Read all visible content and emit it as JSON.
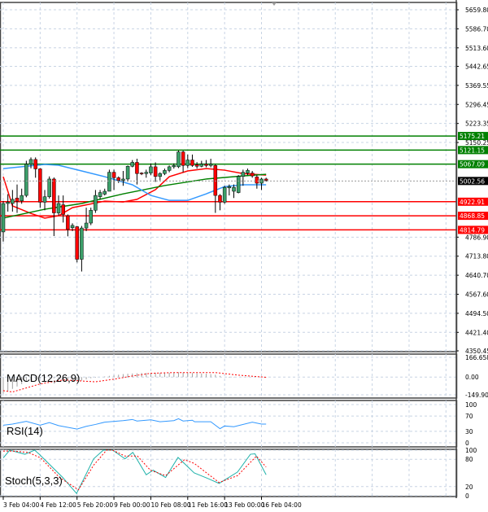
{
  "chart_data": {
    "type": "candlestick",
    "instrument_chart": "price with moving averages and indicators",
    "price_axis": {
      "ticks": [
        "5659.80",
        "5586.70",
        "5513.60",
        "5442.65",
        "5369.55",
        "5296.45",
        "5223.35",
        "5150.25",
        "4786.90",
        "4713.80",
        "4640.70",
        "4567.60",
        "4494.50",
        "4421.40",
        "4350.45"
      ],
      "range": [
        4350.45,
        5659.8
      ]
    },
    "time_axis": {
      "labels": [
        "3 Feb 04:00",
        "4 Feb 12:00",
        "5 Feb 20:00",
        "9 Feb 00:00",
        "10 Feb 08:00",
        "11 Feb 16:00",
        "13 Feb 00:00",
        "16 Feb 04:00"
      ],
      "bars_per_label": 8
    },
    "grid": true,
    "current_price": {
      "value": "5002.56",
      "color": "#000000"
    },
    "levels": [
      {
        "value": "5175.21",
        "color": "#008000"
      },
      {
        "value": "5121.15",
        "color": "#008000"
      },
      {
        "value": "5067.09",
        "color": "#008000"
      },
      {
        "value": "4922.91",
        "color": "#ff0000"
      },
      {
        "value": "4868.85",
        "color": "#ff0000"
      },
      {
        "value": "4814.79",
        "color": "#ff0000"
      }
    ],
    "colors": {
      "bull": "#3c9f6a",
      "bear": "#ff0000",
      "wick": "#000000"
    },
    "candles": [
      [
        4807,
        4926,
        4770,
        4916
      ],
      [
        4916,
        4952,
        4885,
        4921
      ],
      [
        4916,
        4968,
        4885,
        4932
      ],
      [
        4937,
        4989,
        4880,
        4924
      ],
      [
        4926,
        4973,
        4915,
        4947
      ],
      [
        4947,
        5080,
        4940,
        5067
      ],
      [
        5067,
        5093,
        5051,
        5085
      ],
      [
        5085,
        5093,
        5015,
        5049
      ],
      [
        5049,
        5052,
        4900,
        4921
      ],
      [
        4921,
        4968,
        4890,
        4942
      ],
      [
        4942,
        5020,
        4935,
        5010
      ],
      [
        5010,
        5016,
        4791,
        4880
      ],
      [
        4880,
        4947,
        4870,
        4916
      ],
      [
        4911,
        4947,
        4843,
        4874
      ],
      [
        4869,
        4874,
        4790,
        4817
      ],
      [
        4823,
        4840,
        4810,
        4832
      ],
      [
        4827,
        4830,
        4690,
        4702
      ],
      [
        4702,
        4830,
        4655,
        4822
      ],
      [
        4822,
        4900,
        4810,
        4841
      ],
      [
        4841,
        4900,
        4833,
        4890
      ],
      [
        4890,
        4968,
        4880,
        4947
      ],
      [
        4942,
        4968,
        4932,
        4958
      ],
      [
        4952,
        4973,
        4947,
        4963
      ],
      [
        4963,
        5046,
        4963,
        5036
      ],
      [
        5036,
        5046,
        4968,
        5015
      ],
      [
        5015,
        5020,
        4995,
        5005
      ],
      [
        5005,
        5041,
        4984,
        5010
      ],
      [
        5010,
        5062,
        5000,
        5059
      ],
      [
        5059,
        5083,
        5055,
        5074
      ],
      [
        5074,
        5088,
        4989,
        5031
      ],
      [
        5033,
        5036,
        5025,
        5031
      ],
      [
        5031,
        5046,
        5015,
        5036
      ],
      [
        5033,
        5070,
        5025,
        5057
      ],
      [
        5057,
        5074,
        4999,
        5020
      ],
      [
        5020,
        5036,
        5005,
        5031
      ],
      [
        5031,
        5050,
        5025,
        5043
      ],
      [
        5043,
        5062,
        5036,
        5057
      ],
      [
        5057,
        5070,
        5050,
        5062
      ],
      [
        5057,
        5119,
        5052,
        5114
      ],
      [
        5114,
        5119,
        5036,
        5062
      ],
      [
        5062,
        5104,
        5052,
        5083
      ],
      [
        5083,
        5104,
        5057,
        5062
      ],
      [
        5065,
        5075,
        5050,
        5059
      ],
      [
        5059,
        5080,
        5055,
        5067
      ],
      [
        5067,
        5083,
        5055,
        5062
      ],
      [
        5062,
        5088,
        5055,
        5067
      ],
      [
        5062,
        5067,
        4880,
        4947
      ],
      [
        4947,
        4952,
        4890,
        4921
      ],
      [
        4921,
        4984,
        4915,
        4978
      ],
      [
        4976,
        4989,
        4947,
        4981
      ],
      [
        4963,
        4989,
        4937,
        4978
      ],
      [
        4958,
        5025,
        4955,
        5020
      ],
      [
        5020,
        5046,
        4984,
        5036
      ],
      [
        5033,
        5050,
        5025,
        5043
      ],
      [
        5033,
        5041,
        5015,
        5022
      ],
      [
        5018,
        5025,
        4973,
        4994
      ],
      [
        4994,
        5015,
        4968,
        5010
      ],
      [
        5010,
        5015,
        5000,
        5005
      ]
    ],
    "moving_averages": [
      {
        "color": "#ff0000",
        "points": [
          [
            0,
            5019
          ],
          [
            2,
            4907
          ],
          [
            6,
            4878
          ],
          [
            9,
            4860
          ],
          [
            12,
            4869
          ],
          [
            15,
            4900
          ],
          [
            22,
            4925
          ],
          [
            26,
            4922
          ],
          [
            29,
            4932
          ],
          [
            33,
            4969
          ],
          [
            36,
            5019
          ],
          [
            40,
            5041
          ],
          [
            44,
            5050
          ],
          [
            48,
            5044
          ],
          [
            52,
            5031
          ],
          [
            57,
            5025
          ]
        ]
      },
      {
        "color": "#008000",
        "points": [
          [
            0,
            4860
          ],
          [
            9,
            4894
          ],
          [
            17,
            4916
          ],
          [
            26,
            4953
          ],
          [
            35,
            4985
          ],
          [
            44,
            5010
          ],
          [
            52,
            5022
          ],
          [
            57,
            5028
          ]
        ]
      },
      {
        "color": "#3399ff",
        "points": [
          [
            0,
            5050
          ],
          [
            9,
            5066
          ],
          [
            12,
            5063
          ],
          [
            17,
            5041
          ],
          [
            22,
            5019
          ],
          [
            28,
            4988
          ],
          [
            32,
            4947
          ],
          [
            36,
            4928
          ],
          [
            40,
            4928
          ],
          [
            44,
            4953
          ],
          [
            48,
            4981
          ],
          [
            52,
            4988
          ],
          [
            57,
            4988
          ]
        ]
      }
    ],
    "macd": {
      "label": "MACD(12,26,9)",
      "ticks": [
        "166.658",
        "0.00",
        "-149.908"
      ],
      "range": [
        -149.908,
        166.658
      ],
      "histogram_color": "#a0a0a0",
      "signal_color": "#ff0000",
      "histogram": [
        -140,
        -120,
        -100,
        -80,
        -60,
        -40,
        -30,
        -20,
        -10,
        -5,
        -5,
        -10,
        -15,
        -20,
        -25,
        -30,
        -35,
        -30,
        -20,
        -10,
        -5,
        0,
        5,
        10,
        15,
        20,
        25,
        28,
        30,
        32,
        34,
        35,
        36,
        36,
        35,
        35,
        36,
        38,
        40,
        38,
        36,
        34,
        32,
        30,
        28,
        25,
        20,
        10,
        0,
        -5,
        -3,
        0,
        2,
        3,
        2,
        0,
        -2,
        -3
      ],
      "signal": [
        [
          0,
          -115
        ],
        [
          2,
          -126
        ],
        [
          8,
          -58
        ],
        [
          13,
          -24
        ],
        [
          20,
          -40
        ],
        [
          24,
          -18
        ],
        [
          28,
          9
        ],
        [
          32,
          32
        ],
        [
          37,
          38
        ],
        [
          46,
          38
        ],
        [
          51,
          16
        ],
        [
          57,
          -2
        ]
      ]
    },
    "rsi": {
      "label": "RSI(14)",
      "ticks": [
        "100",
        "70",
        "30",
        "0"
      ],
      "range": [
        0,
        100
      ],
      "color": "#3399ff",
      "values": [
        [
          0,
          46
        ],
        [
          2,
          49
        ],
        [
          5,
          56
        ],
        [
          8,
          46
        ],
        [
          10,
          53
        ],
        [
          12,
          45
        ],
        [
          16,
          36
        ],
        [
          18,
          43
        ],
        [
          20,
          48
        ],
        [
          22,
          54
        ],
        [
          26,
          58
        ],
        [
          28,
          61
        ],
        [
          29,
          57
        ],
        [
          32,
          60
        ],
        [
          34,
          55
        ],
        [
          37,
          58
        ],
        [
          38,
          63
        ],
        [
          39,
          57
        ],
        [
          41,
          59
        ],
        [
          41.5,
          55
        ],
        [
          45,
          55
        ],
        [
          47,
          37
        ],
        [
          48,
          44
        ],
        [
          50,
          42
        ],
        [
          54,
          54
        ],
        [
          56,
          49
        ],
        [
          57,
          49
        ]
      ]
    },
    "stoch": {
      "label": "Stoch(5,3,3)",
      "ticks": [
        "100",
        "80",
        "20",
        "0"
      ],
      "range": [
        0,
        100
      ],
      "main_color": "#20b2aa",
      "signal_color": "#ff0000",
      "main": [
        [
          0,
          83
        ],
        [
          1.4,
          100
        ],
        [
          4.7,
          91
        ],
        [
          6.8,
          100
        ],
        [
          7.8,
          91
        ],
        [
          12.9,
          40
        ],
        [
          15.9,
          5
        ],
        [
          19.6,
          81
        ],
        [
          21.7,
          100
        ],
        [
          23.7,
          100
        ],
        [
          26.4,
          81
        ],
        [
          28.1,
          95
        ],
        [
          31,
          46
        ],
        [
          32.5,
          56
        ],
        [
          35.2,
          40
        ],
        [
          37.9,
          84
        ],
        [
          41.4,
          50
        ],
        [
          44.1,
          39
        ],
        [
          46.8,
          27
        ],
        [
          50.8,
          52
        ],
        [
          53.6,
          91
        ],
        [
          54.6,
          92
        ],
        [
          57,
          46
        ]
      ],
      "signal": [
        [
          0,
          98
        ],
        [
          2,
          98
        ],
        [
          5.4,
          95
        ],
        [
          8.1,
          83
        ],
        [
          12.2,
          40
        ],
        [
          16.3,
          13
        ],
        [
          19.6,
          67
        ],
        [
          22.4,
          100
        ],
        [
          23.7,
          100
        ],
        [
          26.4,
          87
        ],
        [
          29.1,
          87
        ],
        [
          31.9,
          56
        ],
        [
          35.2,
          44
        ],
        [
          39.3,
          79
        ],
        [
          41.4,
          71
        ],
        [
          46.8,
          29
        ],
        [
          50.8,
          44
        ],
        [
          54.9,
          87
        ],
        [
          57,
          63
        ]
      ]
    }
  }
}
